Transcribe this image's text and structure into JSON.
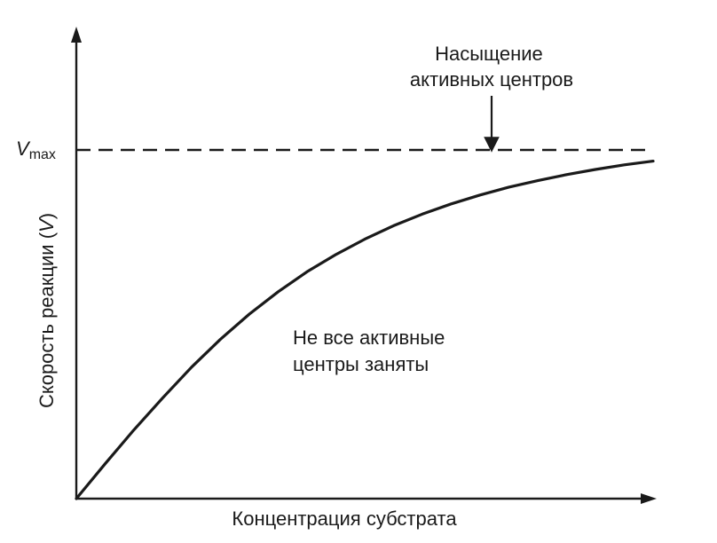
{
  "chart_data": {
    "type": "line",
    "title": "",
    "xlabel": "Концентрация субстрата",
    "ylabel": "Скорость реакции (V)",
    "ylabel_parts": {
      "prefix": "Скорость реакции (",
      "variable": "V",
      "suffix": ")"
    },
    "xlim": [
      0,
      10
    ],
    "ylim": [
      0,
      1.0
    ],
    "grid": false,
    "vmax_label": {
      "symbol": "V",
      "subscript": "max"
    },
    "reference_lines": [
      {
        "type": "horizontal",
        "y": 0.75,
        "style": "dashed"
      }
    ],
    "series": [
      {
        "x": [
          0,
          0.5,
          1,
          1.5,
          2,
          2.5,
          3,
          3.5,
          4,
          4.5,
          5,
          5.5,
          6,
          6.5,
          7,
          7.5,
          8,
          8.5,
          9,
          9.5,
          10
        ],
        "y": [
          0,
          0.075,
          0.148,
          0.217,
          0.283,
          0.343,
          0.397,
          0.445,
          0.488,
          0.525,
          0.558,
          0.587,
          0.612,
          0.634,
          0.653,
          0.67,
          0.684,
          0.697,
          0.708,
          0.718,
          0.726
        ]
      }
    ],
    "annotations": [
      {
        "lines": [
          "Насыщение",
          "активных центров"
        ],
        "x": 7.2,
        "y": 0.93,
        "arrow_to": {
          "x": 7.2,
          "y": 0.75
        }
      },
      {
        "lines": [
          "Не все активные",
          "центры заняты"
        ],
        "x": 4.0,
        "y": 0.36
      }
    ]
  }
}
